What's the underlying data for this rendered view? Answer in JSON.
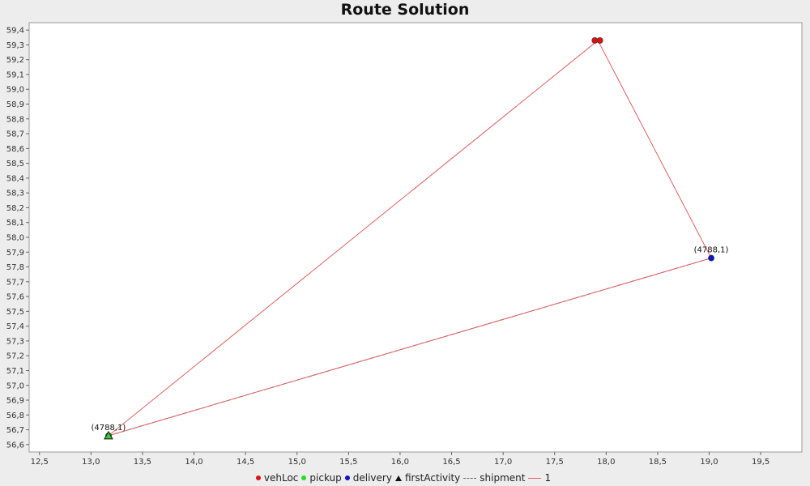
{
  "chart_data": {
    "type": "scatter",
    "title": "Route Solution",
    "xlim": [
      12.4,
      19.9
    ],
    "ylim": [
      56.55,
      59.45
    ],
    "x_ticks": [
      "12,5",
      "13,0",
      "13,5",
      "14,0",
      "14,5",
      "15,0",
      "15,5",
      "16,0",
      "16,5",
      "17,0",
      "17,5",
      "18,0",
      "18,5",
      "19,0",
      "19,5"
    ],
    "x_tick_values": [
      12.5,
      13.0,
      13.5,
      14.0,
      14.5,
      15.0,
      15.5,
      16.0,
      16.5,
      17.0,
      17.5,
      18.0,
      18.5,
      19.0,
      19.5
    ],
    "y_ticks": [
      "56,6",
      "56,7",
      "56,8",
      "56,9",
      "57,0",
      "57,1",
      "57,2",
      "57,3",
      "57,4",
      "57,5",
      "57,6",
      "57,7",
      "57,8",
      "57,9",
      "58,0",
      "58,1",
      "58,2",
      "58,3",
      "58,4",
      "58,5",
      "58,6",
      "58,7",
      "58,8",
      "58,9",
      "59,0",
      "59,1",
      "59,2",
      "59,3",
      "59,4"
    ],
    "y_tick_values": [
      56.6,
      56.7,
      56.8,
      56.9,
      57.0,
      57.1,
      57.2,
      57.3,
      57.4,
      57.5,
      57.6,
      57.7,
      57.8,
      57.9,
      58.0,
      58.1,
      58.2,
      58.3,
      58.4,
      58.5,
      58.6,
      58.7,
      58.8,
      58.9,
      59.0,
      59.1,
      59.2,
      59.3,
      59.4
    ],
    "grid": false,
    "legend_position": "bottom",
    "series": [
      {
        "name": "vehLoc",
        "kind": "point",
        "color": "#dd1111",
        "points": [
          {
            "x": 17.89,
            "y": 59.33
          },
          {
            "x": 17.94,
            "y": 59.33
          }
        ]
      },
      {
        "name": "pickup",
        "kind": "point",
        "color": "#22dd22",
        "points": [
          {
            "x": 13.17,
            "y": 56.66
          }
        ]
      },
      {
        "name": "delivery",
        "kind": "point",
        "color": "#1111cc",
        "points": [
          {
            "x": 19.02,
            "y": 57.86
          }
        ]
      },
      {
        "name": "firstActivity",
        "kind": "triangle",
        "color": "#111111",
        "points": [
          {
            "x": 13.17,
            "y": 56.66
          }
        ]
      },
      {
        "name": "shipment",
        "kind": "dashed-line",
        "color": "#666666",
        "points": [
          {
            "x": 13.17,
            "y": 56.66
          },
          {
            "x": 19.02,
            "y": 57.86
          }
        ]
      },
      {
        "name": "1",
        "kind": "route-line",
        "color": "#e06060",
        "points": [
          {
            "x": 17.92,
            "y": 59.33
          },
          {
            "x": 13.17,
            "y": 56.66
          },
          {
            "x": 19.02,
            "y": 57.86
          },
          {
            "x": 17.92,
            "y": 59.33
          }
        ]
      }
    ],
    "annotations": [
      {
        "text": "(4788,1)",
        "x": 13.17,
        "y": 56.66
      },
      {
        "text": "(4788,1)",
        "x": 19.02,
        "y": 57.86
      }
    ]
  }
}
